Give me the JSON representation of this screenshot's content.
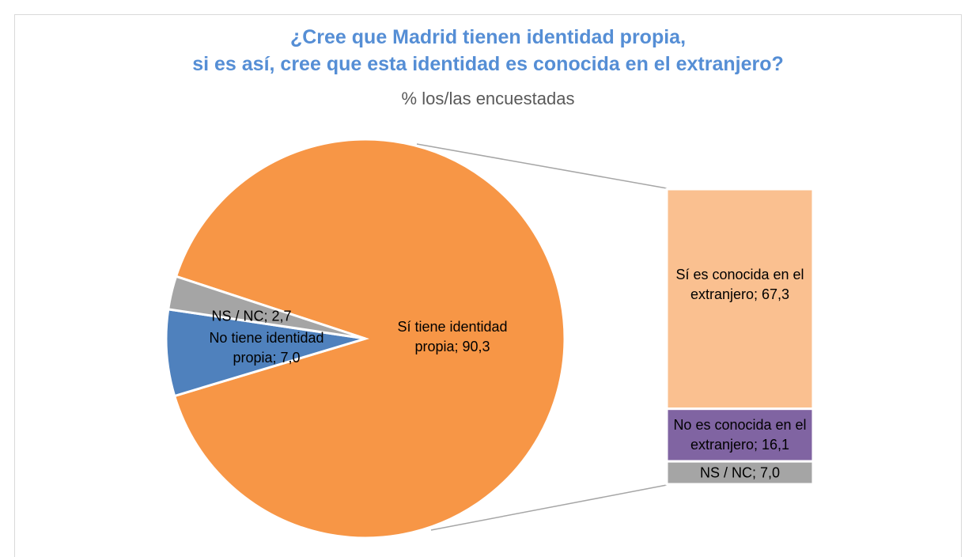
{
  "chart_data": [
    {
      "type": "pie",
      "title": "¿Cree que Madrid tienen identidad propia,\nsi es así, cree que esta identidad es conocida en el extranjero?",
      "subtitle": "% los/las encuestadas",
      "values": [
        90.3,
        7.0,
        2.7
      ],
      "value_labels": [
        "Sí tiene identidad propia; 90,3",
        "No tiene identidad propia; 7,0",
        "NS / NC; 2,7"
      ],
      "colors": [
        "#f79646",
        "#4f81bd",
        "#a5a5a5"
      ]
    },
    {
      "type": "bar",
      "stacked": true,
      "values": [
        67.3,
        16.1,
        7.0
      ],
      "value_labels": [
        "Sí es conocida en el extranjero; 67,3",
        "No es conocida en el extranjero; 16,1",
        "NS / NC; 7,0"
      ],
      "colors": [
        "#fac090",
        "#8064a2",
        "#a5a5a5"
      ]
    }
  ]
}
